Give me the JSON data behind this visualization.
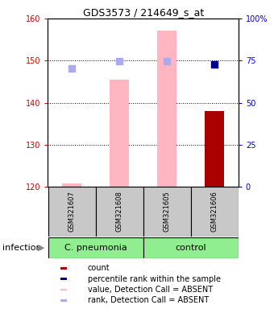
{
  "title": "GDS3573 / 214649_s_at",
  "samples": [
    "GSM321607",
    "GSM321608",
    "GSM321605",
    "GSM321606"
  ],
  "ylim_left": [
    120,
    160
  ],
  "ylim_right": [
    0,
    100
  ],
  "yticks_left": [
    120,
    130,
    140,
    150,
    160
  ],
  "yticks_right": [
    0,
    25,
    50,
    75,
    100
  ],
  "ytick_labels_right": [
    "0",
    "25",
    "50",
    "75",
    "100%"
  ],
  "bar_values": [
    120.8,
    145.5,
    157.2,
    138.0
  ],
  "bar_colors": [
    "#FFB6C1",
    "#FFB6C1",
    "#FFB6C1",
    "#AA0000"
  ],
  "bar_width": 0.4,
  "dot_values": [
    148.2,
    149.8,
    149.8,
    149.2
  ],
  "dot_colors": [
    "#AAAAEE",
    "#AAAAEE",
    "#AAAAEE",
    "#00008B"
  ],
  "dot_sizes": [
    28,
    28,
    28,
    35
  ],
  "legend_items": [
    {
      "color": "#AA0000",
      "label": "count"
    },
    {
      "color": "#00008B",
      "label": "percentile rank within the sample"
    },
    {
      "color": "#FFB6C1",
      "label": "value, Detection Call = ABSENT"
    },
    {
      "color": "#AAAAEE",
      "label": "rank, Detection Call = ABSENT"
    }
  ],
  "infection_label": "infection",
  "group_label_1": "C. pneumonia",
  "group_label_2": "control",
  "group_color": "#90EE90",
  "sample_box_color": "#C8C8C8",
  "left_color": "#CC0000",
  "right_color": "#0000CC",
  "title_fontsize": 9,
  "tick_fontsize": 7,
  "sample_fontsize": 6,
  "group_fontsize": 8,
  "legend_fontsize": 7,
  "infection_fontsize": 8
}
